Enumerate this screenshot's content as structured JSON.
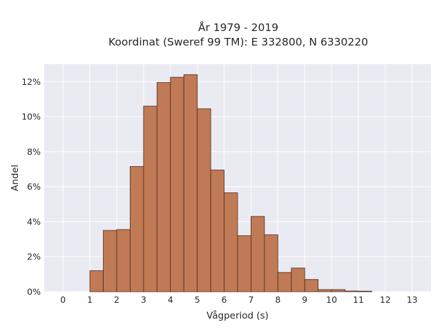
{
  "chart_data": {
    "type": "bar",
    "title": "År 1979 - 2019",
    "subtitle": "Koordinat (Sweref 99 TM): E 332800, N 6330220",
    "xlabel": "Vågperiod (s)",
    "ylabel": "Andel",
    "xlim": [
      -0.7,
      13.7
    ],
    "ylim": [
      0,
      13
    ],
    "x_ticks": [
      0,
      1,
      2,
      3,
      4,
      5,
      6,
      7,
      8,
      9,
      10,
      11,
      12,
      13
    ],
    "y_ticks": [
      0,
      2,
      4,
      6,
      8,
      10,
      12
    ],
    "y_tick_labels": [
      "0%",
      "2%",
      "4%",
      "6%",
      "8%",
      "10%",
      "12%"
    ],
    "bin_width": 0.5,
    "bins": [
      1.0,
      1.5,
      2.0,
      2.5,
      3.0,
      3.5,
      4.0,
      4.5,
      5.0,
      5.5,
      6.0,
      6.5,
      7.0,
      7.5,
      8.0,
      8.5,
      9.0,
      9.5,
      10.0,
      10.5,
      11.0
    ],
    "values": [
      1.2,
      3.5,
      3.55,
      7.15,
      10.6,
      11.95,
      12.25,
      12.4,
      10.45,
      6.95,
      5.65,
      3.2,
      4.3,
      3.25,
      1.1,
      1.35,
      0.7,
      0.12,
      0.12,
      0.04,
      0.03
    ],
    "grid": true,
    "colors": {
      "bar_fill": "#c07a55",
      "bar_edge": "#4a2a1a",
      "plot_bg": "#eaeaf2",
      "grid": "#ffffff"
    }
  }
}
